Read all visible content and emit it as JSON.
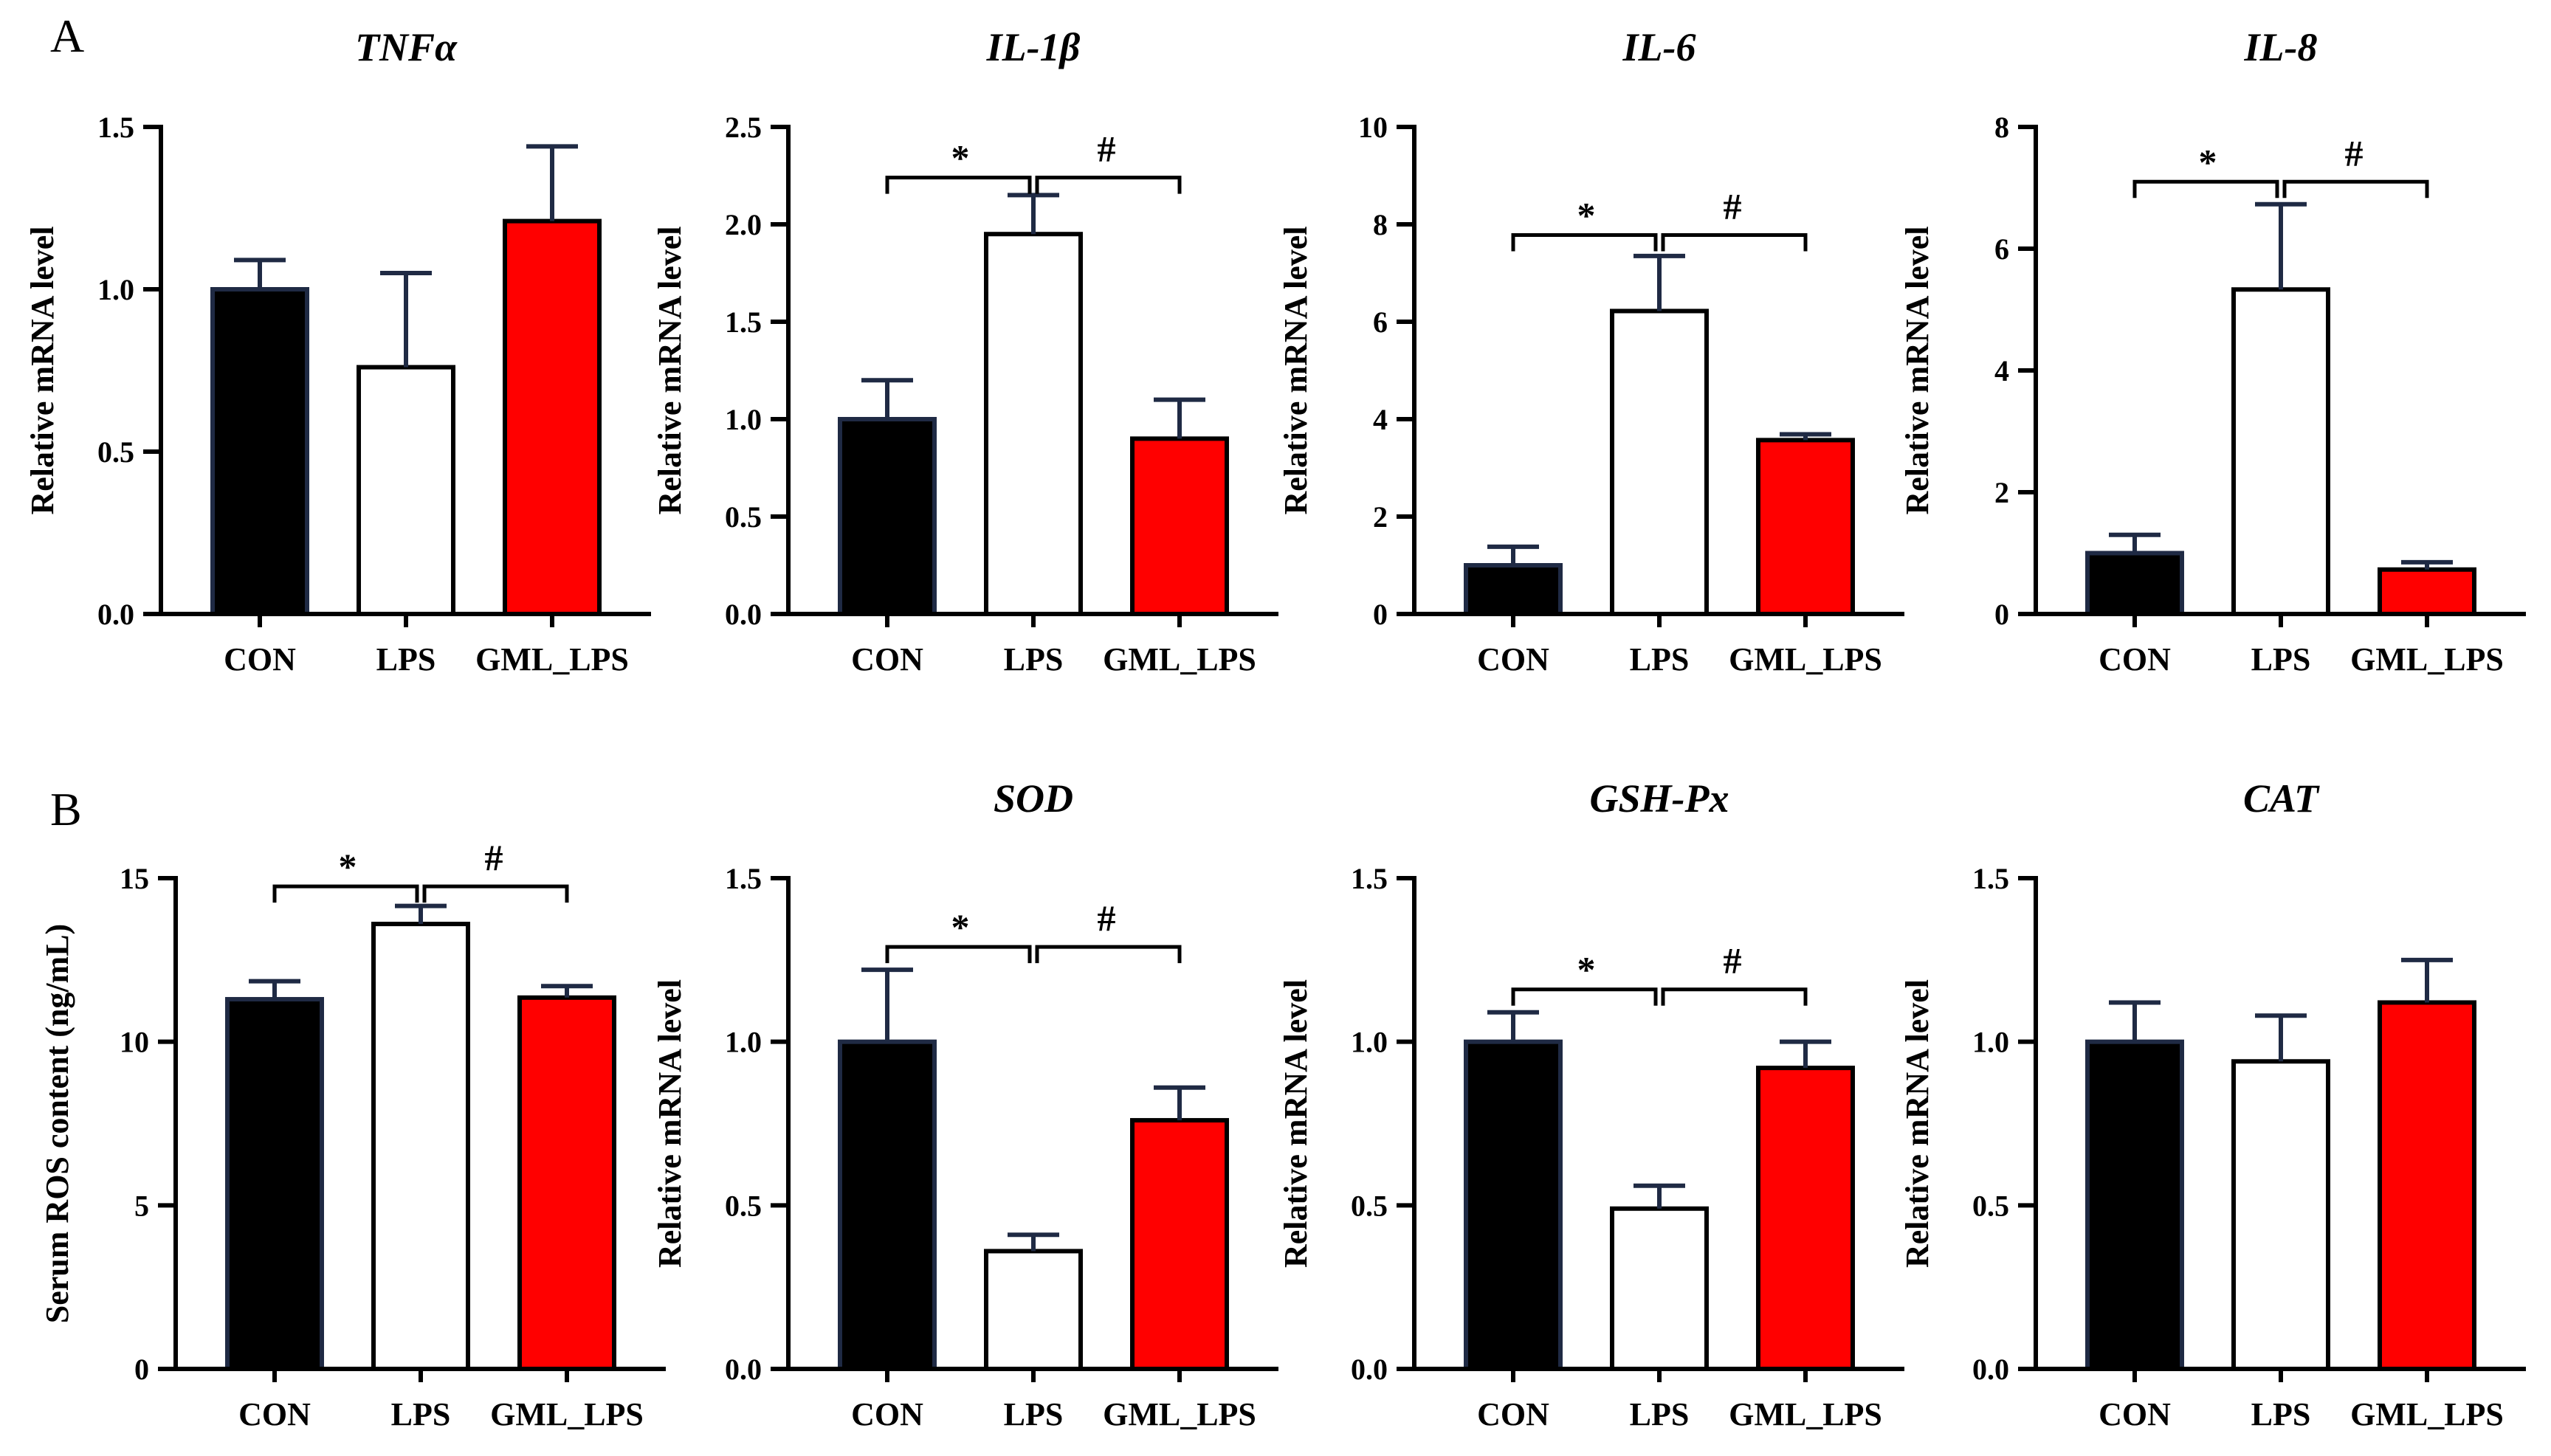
{
  "panels": [
    "A",
    "B"
  ],
  "colors": {
    "CON": "#000000",
    "LPS": "#ffffff",
    "GML_LPS": "#ff0000",
    "axis": "#000000",
    "errorbar": "#1f2a44"
  },
  "chart_data": [
    {
      "type": "bar",
      "title": "TNFα",
      "ylabel": "Relative mRNA level",
      "categories": [
        "CON",
        "LPS",
        "GML_LPS"
      ],
      "values": [
        1.0,
        0.76,
        1.21
      ],
      "errors": [
        0.09,
        0.29,
        0.23
      ],
      "ylim": [
        0,
        1.5
      ],
      "yticks": [
        "0.0",
        "0.5",
        "1.0",
        "1.5"
      ],
      "tick_values": [
        0,
        0.5,
        1.0,
        1.5
      ],
      "significance": []
    },
    {
      "type": "bar",
      "title": "IL-1β",
      "ylabel": "Relative mRNA level",
      "categories": [
        "CON",
        "LPS",
        "GML_LPS"
      ],
      "values": [
        1.0,
        1.95,
        0.9
      ],
      "errors": [
        0.2,
        0.2,
        0.2
      ],
      "ylim": [
        0,
        2.5
      ],
      "yticks": [
        "0.0",
        "0.5",
        "1.0",
        "1.5",
        "2.0",
        "2.5"
      ],
      "tick_values": [
        0,
        0.5,
        1.0,
        1.5,
        2.0,
        2.5
      ],
      "significance": [
        {
          "label": "*",
          "from": "CON",
          "to": "LPS",
          "level": 2.24
        },
        {
          "label": "#",
          "from": "LPS",
          "to": "GML_LPS",
          "level": 2.24
        }
      ]
    },
    {
      "type": "bar",
      "title": "IL-6",
      "ylabel": "Relative mRNA level",
      "categories": [
        "CON",
        "LPS",
        "GML_LPS"
      ],
      "values": [
        1.0,
        6.22,
        3.57
      ],
      "errors": [
        0.38,
        1.13,
        0.12
      ],
      "ylim": [
        0,
        10
      ],
      "yticks": [
        "0",
        "2",
        "4",
        "6",
        "8",
        "10"
      ],
      "tick_values": [
        0,
        2,
        4,
        6,
        8,
        10
      ],
      "significance": [
        {
          "label": "*",
          "from": "CON",
          "to": "LPS",
          "level": 7.78
        },
        {
          "label": "#",
          "from": "LPS",
          "to": "GML_LPS",
          "level": 7.78
        }
      ]
    },
    {
      "type": "bar",
      "title": "IL-8",
      "ylabel": "Relative mRNA level",
      "categories": [
        "CON",
        "LPS",
        "GML_LPS"
      ],
      "values": [
        1.0,
        5.33,
        0.73
      ],
      "errors": [
        0.3,
        1.4,
        0.12
      ],
      "ylim": [
        0,
        8
      ],
      "yticks": [
        "0",
        "2",
        "4",
        "6",
        "8"
      ],
      "tick_values": [
        0,
        2,
        4,
        6,
        8
      ],
      "significance": [
        {
          "label": "*",
          "from": "CON",
          "to": "LPS",
          "level": 7.1
        },
        {
          "label": "#",
          "from": "LPS",
          "to": "GML_LPS",
          "level": 7.1
        }
      ]
    },
    {
      "type": "bar",
      "title": "",
      "ylabel": "Serum ROS content (ng/mL)",
      "categories": [
        "CON",
        "LPS",
        "GML_LPS"
      ],
      "values": [
        11.3,
        13.6,
        11.35
      ],
      "errors": [
        0.55,
        0.55,
        0.35
      ],
      "ylim": [
        0,
        15
      ],
      "yticks": [
        "0",
        "5",
        "10",
        "15"
      ],
      "tick_values": [
        0,
        5,
        10,
        15
      ],
      "significance": [
        {
          "label": "*",
          "from": "CON",
          "to": "LPS",
          "level": 14.75
        },
        {
          "label": "#",
          "from": "LPS",
          "to": "GML_LPS",
          "level": 14.75
        }
      ]
    },
    {
      "type": "bar",
      "title": "SOD",
      "ylabel": "Relative mRNA level",
      "categories": [
        "CON",
        "LPS",
        "GML_LPS"
      ],
      "values": [
        1.0,
        0.36,
        0.76
      ],
      "errors": [
        0.22,
        0.05,
        0.1
      ],
      "ylim": [
        0,
        1.5
      ],
      "yticks": [
        "0.0",
        "0.5",
        "1.0",
        "1.5"
      ],
      "tick_values": [
        0,
        0.5,
        1.0,
        1.5
      ],
      "significance": [
        {
          "label": "*",
          "from": "CON",
          "to": "LPS",
          "level": 1.29
        },
        {
          "label": "#",
          "from": "LPS",
          "to": "GML_LPS",
          "level": 1.29
        }
      ]
    },
    {
      "type": "bar",
      "title": "GSH-Px",
      "ylabel": "Relative mRNA level",
      "categories": [
        "CON",
        "LPS",
        "GML_LPS"
      ],
      "values": [
        1.0,
        0.49,
        0.92
      ],
      "errors": [
        0.09,
        0.07,
        0.08
      ],
      "ylim": [
        0,
        1.5
      ],
      "yticks": [
        "0.0",
        "0.5",
        "1.0",
        "1.5"
      ],
      "tick_values": [
        0,
        0.5,
        1.0,
        1.5
      ],
      "significance": [
        {
          "label": "*",
          "from": "CON",
          "to": "LPS",
          "level": 1.16
        },
        {
          "label": "#",
          "from": "LPS",
          "to": "GML_LPS",
          "level": 1.16
        }
      ]
    },
    {
      "type": "bar",
      "title": "CAT",
      "ylabel": "Relative mRNA level",
      "categories": [
        "CON",
        "LPS",
        "GML_LPS"
      ],
      "values": [
        1.0,
        0.94,
        1.12
      ],
      "errors": [
        0.12,
        0.14,
        0.13
      ],
      "ylim": [
        0,
        1.5
      ],
      "yticks": [
        "0.0",
        "0.5",
        "1.0",
        "1.5"
      ],
      "tick_values": [
        0,
        0.5,
        1.0,
        1.5
      ],
      "significance": []
    }
  ]
}
